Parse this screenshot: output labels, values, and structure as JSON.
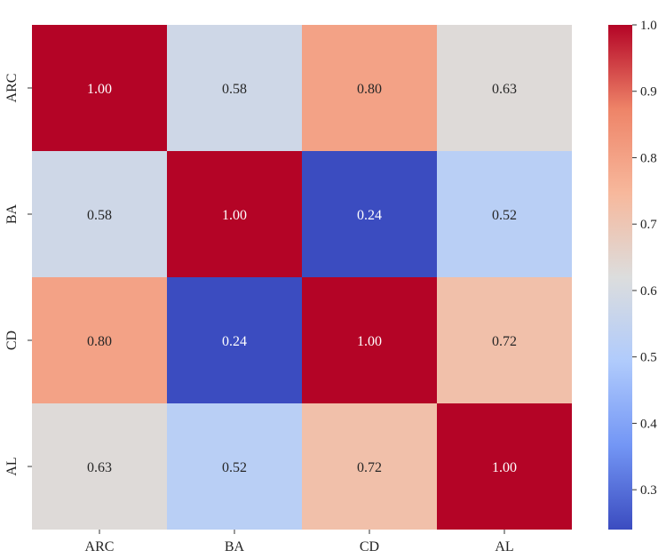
{
  "chart_data": {
    "type": "heatmap",
    "rows": [
      "ARC",
      "BA",
      "CD",
      "AL"
    ],
    "columns": [
      "ARC",
      "BA",
      "CD",
      "AL"
    ],
    "values": [
      [
        1.0,
        0.58,
        0.8,
        0.63
      ],
      [
        0.58,
        1.0,
        0.24,
        0.52
      ],
      [
        0.8,
        0.24,
        1.0,
        0.72
      ],
      [
        0.63,
        0.52,
        0.72,
        1.0
      ]
    ],
    "value_labels": [
      [
        "1.00",
        "0.58",
        "0.80",
        "0.63"
      ],
      [
        "0.58",
        "1.00",
        "0.24",
        "0.52"
      ],
      [
        "0.80",
        "0.24",
        "1.00",
        "0.72"
      ],
      [
        "0.63",
        "0.52",
        "0.72",
        "1.00"
      ]
    ],
    "colorbar": {
      "range": [
        0.24,
        1.0
      ],
      "ticks": [
        0.3,
        0.4,
        0.5,
        0.6,
        0.7,
        0.8,
        0.9,
        1.0
      ],
      "tick_labels": [
        "0.3",
        "0.4",
        "0.5",
        "0.6",
        "0.7",
        "0.8",
        "0.9",
        "1.0"
      ]
    },
    "colormap": "coolwarm",
    "colormap_stops": [
      "#3b4cc0",
      "#7396f5",
      "#b0cbfc",
      "#dcdddd",
      "#f7b89c",
      "#ee8468",
      "#b40426"
    ]
  }
}
